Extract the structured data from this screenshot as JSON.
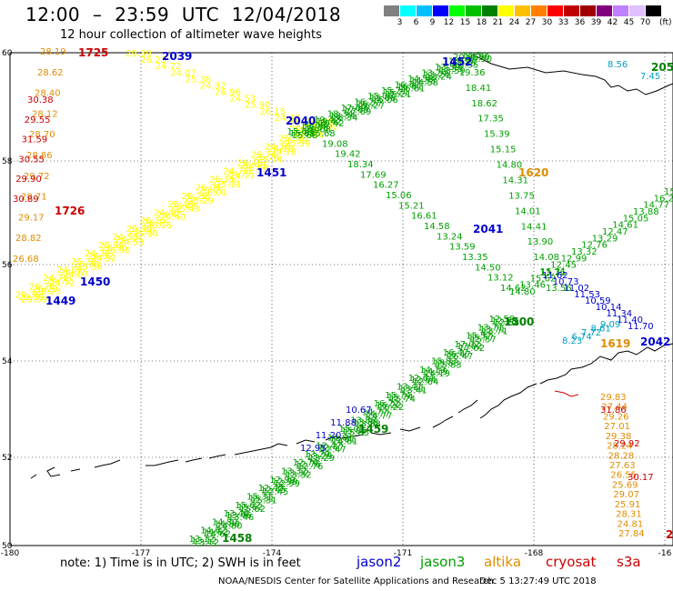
{
  "header": {
    "title": "12:00  –  23:59  UTC  12/04/2018",
    "subtitle": "12 hour collection of altimeter wave heights"
  },
  "scale": {
    "unit": "(ft)",
    "colors": [
      "#808080",
      "#00ffff",
      "#00c0ff",
      "#0000ff",
      "#00ff00",
      "#00c000",
      "#008000",
      "#ffff00",
      "#ffc000",
      "#ff8000",
      "#ff0000",
      "#c00000",
      "#a00000",
      "#800080",
      "#c080ff",
      "#e0c0ff",
      "#000000"
    ],
    "labels": [
      "3",
      "6",
      "9",
      "12",
      "15",
      "18",
      "21",
      "24",
      "27",
      "30",
      "33",
      "36",
      "39",
      "42",
      "45",
      "70"
    ]
  },
  "axes": {
    "x_ticks": [
      "-180",
      "-177",
      "-174",
      "-171",
      "-168",
      "-16"
    ],
    "y_ticks": [
      "60",
      "58",
      "56",
      "54",
      "52",
      "50"
    ]
  },
  "passes": [
    {
      "satellite": "altika",
      "color": "#e08c00",
      "labels": [
        "28.19",
        "28.62",
        "28.40",
        "28.12",
        "28.70",
        "28.86",
        "29.72",
        "28.71",
        "29.17",
        "28.82",
        "26.68",
        "29.83",
        "27.44",
        "29.26",
        "27.01",
        "29.38",
        "28.24",
        "28.28",
        "27.63",
        "26.55",
        "25.69",
        "29.07",
        "25.91",
        "28.31",
        "24.81",
        "27.84"
      ]
    },
    {
      "satellite": "cryosat",
      "color": "#cc0000",
      "labels": [
        "30.38",
        "29.55",
        "31.59",
        "30.55",
        "29.90",
        "30.89",
        "31.86",
        "29.92",
        "30.17"
      ]
    },
    {
      "satellite": "s3a",
      "color": "#ffff00",
      "labels": [
        "29.39",
        "26.23",
        "24.72",
        "24.07",
        "25.38",
        "24.32",
        "26.96",
        "24.53",
        "25.90",
        "26.15",
        "24.40",
        "25.43",
        "25.29",
        "26.01",
        "25.11",
        "24.77",
        "26.48",
        "25.74",
        "24.18",
        "25.39",
        "24.66",
        "25.02"
      ]
    },
    {
      "satellite": "jason3",
      "color": "#00a000",
      "labels": [
        "20.95",
        "19.36",
        "18.41",
        "18.62",
        "17.35",
        "15.39",
        "15.15",
        "14.80",
        "14.31",
        "13.75",
        "14.01",
        "14.41",
        "13.90",
        "14.08",
        "13.76",
        "13.56",
        "15.68",
        "19.08",
        "19.42",
        "18.34",
        "17.69",
        "16.27",
        "15.06",
        "15.21",
        "16.61",
        "14.58",
        "13.24",
        "13.59",
        "13.35",
        "14.50",
        "13.12",
        "14.62",
        "14.80",
        "13.46",
        "15.62",
        "15.31",
        "12.45",
        "12.99",
        "13.32",
        "12.76",
        "13.29",
        "12.47",
        "14.61",
        "15.05",
        "13.88",
        "14.77",
        "16.22",
        "15.74",
        "13.41",
        "12.64",
        "14.19",
        "15.83",
        "16.47",
        "17.02",
        "15.57",
        "13.71",
        "12.58"
      ]
    },
    {
      "satellite": "jason2",
      "color": "#0000cc",
      "labels": [
        "11.62",
        "10.73",
        "11.02",
        "11.53",
        "10.59",
        "10.14",
        "11.34",
        "11.40",
        "11.70",
        "12.95",
        "11.20",
        "11.88",
        "10.67"
      ]
    },
    {
      "satellite": "jason2",
      "color": "#00a0c0",
      "labels": [
        "8.56",
        "7.45",
        "6.94",
        "8.23",
        "6.74",
        "7.72",
        "8.61",
        "9.09"
      ]
    }
  ],
  "time_labels": [
    {
      "text": "1725",
      "color": "#cc0000"
    },
    {
      "text": "2039",
      "color": "#0000cc"
    },
    {
      "text": "1452",
      "color": "#0000cc"
    },
    {
      "text": "2040",
      "color": "#0000cc"
    },
    {
      "text": "1451",
      "color": "#0000cc"
    },
    {
      "text": "1620",
      "color": "#e08c00"
    },
    {
      "text": "1726",
      "color": "#cc0000"
    },
    {
      "text": "2041",
      "color": "#0000cc"
    },
    {
      "text": "1450",
      "color": "#0000cc"
    },
    {
      "text": "1449",
      "color": "#0000cc"
    },
    {
      "text": "1500",
      "color": "#008000"
    },
    {
      "text": "2042",
      "color": "#0000cc"
    },
    {
      "text": "1619",
      "color": "#e08c00"
    },
    {
      "text": "1459",
      "color": "#008000"
    },
    {
      "text": "1458",
      "color": "#008000"
    },
    {
      "text": "205",
      "color": "#008000"
    },
    {
      "text": "2",
      "color": "#cc0000"
    }
  ],
  "footer": {
    "note": "note:  1) Time is in UTC;  2) SWH is in feet",
    "legend": [
      {
        "name": "jason2",
        "color": "#0000cc"
      },
      {
        "name": "jason3",
        "color": "#00a000"
      },
      {
        "name": "altika",
        "color": "#e08c00"
      },
      {
        "name": "cryosat",
        "color": "#cc0000"
      },
      {
        "name": "s3a",
        "color": "#cc0000"
      }
    ],
    "credit": "NOAA/NESDIS Center for Satellite Applications and Research",
    "timestamp": "Dec  5 13:27:49 UTC 2018"
  }
}
